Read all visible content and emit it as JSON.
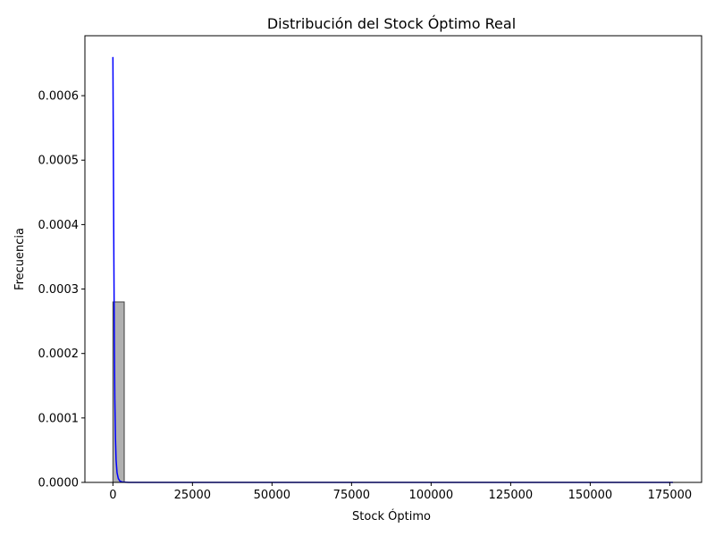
{
  "chart_data": {
    "type": "bar",
    "title": "Distribución del Stock Óptimo Real",
    "xlabel": "Stock Óptimo",
    "ylabel": "Frecuencia",
    "xlim": [
      -8800,
      185000
    ],
    "ylim": [
      0,
      0.000693
    ],
    "xticks": [
      0,
      25000,
      50000,
      75000,
      100000,
      125000,
      150000,
      175000
    ],
    "xtick_labels": [
      "0",
      "25000",
      "50000",
      "75000",
      "100000",
      "125000",
      "150000",
      "175000"
    ],
    "yticks": [
      0,
      0.0001,
      0.0002,
      0.0003,
      0.0004,
      0.0005,
      0.0006
    ],
    "ytick_labels": [
      "0.0000",
      "0.0001",
      "0.0002",
      "0.0003",
      "0.0004",
      "0.0005",
      "0.0006"
    ],
    "histogram": {
      "bins": [
        {
          "x0": 0,
          "x1": 3560,
          "value": 0.00028
        }
      ],
      "bar_color": "#b0b0b0",
      "edge_color": "#404040"
    },
    "kde": {
      "color": "#0000ff",
      "points": [
        [
          0,
          0.00066
        ],
        [
          150,
          0.0005
        ],
        [
          300,
          0.00035
        ],
        [
          450,
          0.00022
        ],
        [
          600,
          0.00013
        ],
        [
          800,
          7e-05
        ],
        [
          1000,
          3.5e-05
        ],
        [
          1300,
          1.5e-05
        ],
        [
          1700,
          6e-06
        ],
        [
          2200,
          2e-06
        ],
        [
          3000,
          5e-07
        ],
        [
          5000,
          0.0
        ],
        [
          20000,
          0.0
        ],
        [
          60000,
          0.0
        ],
        [
          100000,
          0.0
        ],
        [
          140000,
          0.0
        ],
        [
          176000,
          0.0
        ]
      ]
    },
    "grid": false
  }
}
